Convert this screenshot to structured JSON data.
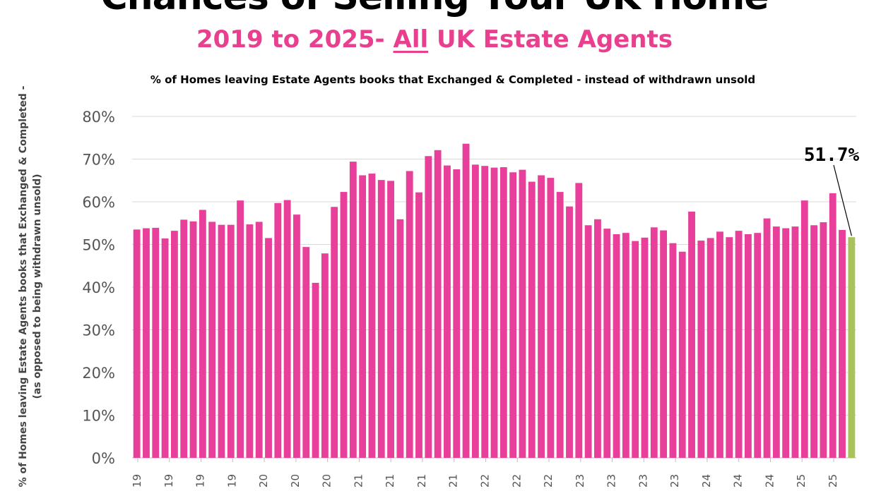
{
  "chart_data": {
    "type": "bar",
    "title": "Chances of Selling Your UK Home",
    "subtitle_prefix": "2019 to 2025- ",
    "subtitle_emph": "All",
    "subtitle_suffix": " UK Estate Agents",
    "description": "% of Homes leaving Estate Agents books that Exchanged & Completed - instead of withdrawn unsold",
    "ylabel": "% of Homes leaving Estate Agents books that Exchanged & Completed - (as opposed to being withdrawn unsold)",
    "y_tick_labels": [
      "0%",
      "10%",
      "20%",
      "30%",
      "40%",
      "50%",
      "60%",
      "70%",
      "80%"
    ],
    "ylim": [
      0,
      80
    ],
    "x_tick_labels": [
      "-19",
      "-19",
      "-19",
      "-19",
      "-20",
      "-20",
      "-20",
      "-21",
      "-21",
      "-21",
      "-21",
      "-22",
      "-22",
      "-22",
      "-23",
      "-23",
      "-23",
      "-23",
      "-24",
      "-24",
      "-24",
      "-25",
      "-25"
    ],
    "grid": true,
    "colors": {
      "bar": "#e8409a",
      "highlight": "#a9c25a",
      "grid": "#d9d9d9"
    },
    "values": [
      53.5,
      53.8,
      53.9,
      51.4,
      53.2,
      55.8,
      55.4,
      58.1,
      55.3,
      54.6,
      54.6,
      60.3,
      54.7,
      55.3,
      51.5,
      59.7,
      60.4,
      57,
      49.4,
      41,
      47.9,
      58.8,
      62.3,
      69.4,
      66.2,
      66.6,
      65.1,
      64.9,
      55.9,
      67.2,
      62.2,
      70.7,
      72.1,
      68.5,
      67.6,
      73.6,
      68.7,
      68.4,
      68,
      68.1,
      66.9,
      67.5,
      64.7,
      66.2,
      65.6,
      62.3,
      58.9,
      64.4,
      54.5,
      55.9,
      53.7,
      52.4,
      52.7,
      50.8,
      51.6,
      54,
      53.3,
      50.3,
      48.3,
      57.7,
      50.9,
      51.5,
      53,
      51.7,
      53.2,
      52.4,
      52.7,
      56.1,
      54.2,
      53.8,
      54.2,
      60.3,
      54.5,
      55.2,
      62,
      53.4,
      51.7
    ],
    "highlight_index": 76,
    "annotation": "51.7%"
  }
}
